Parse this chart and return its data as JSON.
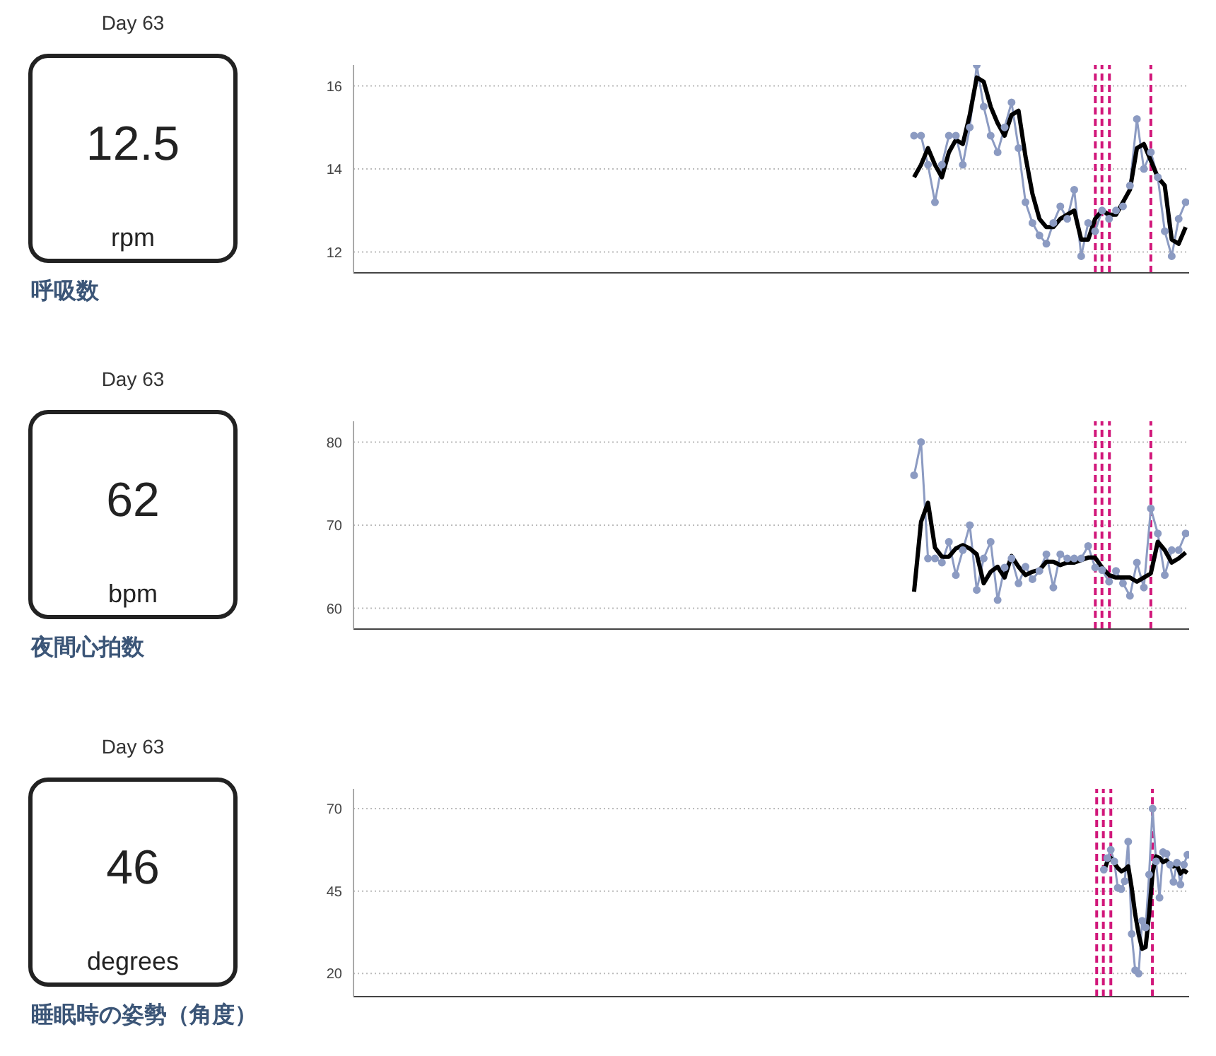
{
  "chart_data": [
    {
      "type": "other",
      "title": "Day 63",
      "annotations": [
        "12.5",
        "rpm",
        "呼吸数"
      ]
    },
    {
      "type": "line",
      "categories": [
        null,
        null,
        null,
        null,
        null,
        null,
        null,
        null,
        null,
        null,
        null,
        null,
        null,
        null,
        null,
        null,
        null,
        null,
        null,
        null,
        null,
        null,
        null,
        null,
        null,
        null,
        null,
        null,
        null,
        null,
        null,
        null,
        null,
        null,
        null,
        null,
        null,
        null,
        null,
        null,
        null,
        null,
        null,
        null,
        null,
        null,
        null,
        null,
        null,
        null,
        null,
        null,
        null,
        null,
        null,
        null,
        null,
        null,
        null,
        null,
        null,
        null,
        null,
        null,
        null,
        null,
        null,
        null,
        null,
        null,
        null,
        null,
        null,
        null,
        null,
        null,
        null,
        null,
        null,
        null,
        null,
        null,
        null,
        null,
        null,
        null,
        null,
        null,
        null,
        null,
        null,
        null,
        null,
        null,
        null,
        null,
        null,
        null,
        null,
        null,
        null,
        null,
        null,
        null,
        null,
        null,
        null,
        null,
        null,
        null,
        null,
        null,
        null,
        null,
        null,
        null,
        null,
        null,
        null,
        null
      ],
      "ylim": [
        11.5,
        16.5
      ],
      "yticks": [
        12,
        14,
        16
      ],
      "grid": "y",
      "series": [
        {
          "color": "#8c9bc2",
          "marker": "circle",
          "values": [
            null,
            null,
            null,
            null,
            null,
            null,
            null,
            null,
            null,
            null,
            null,
            null,
            null,
            null,
            null,
            null,
            null,
            null,
            null,
            null,
            null,
            null,
            null,
            null,
            null,
            null,
            null,
            null,
            null,
            null,
            null,
            null,
            null,
            null,
            null,
            null,
            null,
            null,
            null,
            null,
            null,
            null,
            null,
            null,
            null,
            null,
            null,
            null,
            null,
            null,
            null,
            null,
            null,
            null,
            null,
            null,
            null,
            null,
            null,
            null,
            null,
            null,
            null,
            null,
            null,
            null,
            null,
            null,
            null,
            null,
            null,
            null,
            null,
            null,
            null,
            null,
            null,
            null,
            null,
            null,
            14.8,
            14.8,
            14.1,
            13.2,
            14.1,
            14.8,
            14.8,
            14.1,
            15.0,
            16.5,
            15.5,
            14.8,
            14.4,
            15.0,
            15.6,
            14.5,
            13.2,
            12.7,
            12.4,
            12.2,
            12.7,
            13.1,
            12.8,
            13.5,
            11.9,
            12.7,
            12.5,
            13.0,
            12.8,
            13.0,
            13.1,
            13.6,
            15.2,
            14.0,
            14.4,
            13.8,
            12.5,
            11.9,
            12.8,
            13.2
          ]
        },
        {
          "color": "#000000",
          "marker": "none",
          "values": [
            null,
            null,
            null,
            null,
            null,
            null,
            null,
            null,
            null,
            null,
            null,
            null,
            null,
            null,
            null,
            null,
            null,
            null,
            null,
            null,
            null,
            null,
            null,
            null,
            null,
            null,
            null,
            null,
            null,
            null,
            null,
            null,
            null,
            null,
            null,
            null,
            null,
            null,
            null,
            null,
            null,
            null,
            null,
            null,
            null,
            null,
            null,
            null,
            null,
            null,
            null,
            null,
            null,
            null,
            null,
            null,
            null,
            null,
            null,
            null,
            null,
            null,
            null,
            null,
            null,
            null,
            null,
            null,
            null,
            null,
            null,
            null,
            null,
            null,
            null,
            null,
            null,
            null,
            null,
            null,
            13.8,
            14.1,
            14.5,
            14.1,
            13.8,
            14.4,
            14.7,
            14.6,
            15.3,
            16.2,
            16.1,
            15.5,
            15.1,
            14.8,
            15.3,
            15.4,
            14.3,
            13.4,
            12.8,
            12.6,
            12.6,
            12.8,
            12.9,
            13.0,
            12.3,
            12.3,
            12.8,
            13.0,
            12.9,
            12.9,
            13.2,
            13.5,
            14.5,
            14.6,
            14.2,
            13.8,
            13.6,
            12.3,
            12.2,
            12.6
          ]
        }
      ],
      "tick_labels": "y"
    },
    {
      "type": "other",
      "title": "Day 63",
      "annotations": [
        "62",
        "bpm",
        "夜間心拍数"
      ]
    },
    {
      "type": "line",
      "categories": [
        null,
        null,
        null,
        null,
        null,
        null,
        null,
        null,
        null,
        null,
        null,
        null,
        null,
        null,
        null,
        null,
        null,
        null,
        null,
        null,
        null,
        null,
        null,
        null,
        null,
        null,
        null,
        null,
        null,
        null,
        null,
        null,
        null,
        null,
        null,
        null,
        null,
        null,
        null,
        null,
        null,
        null,
        null,
        null,
        null,
        null,
        null,
        null,
        null,
        null,
        null,
        null,
        null,
        null,
        null,
        null,
        null,
        null,
        null,
        null,
        null,
        null,
        null,
        null,
        null,
        null,
        null,
        null,
        null,
        null,
        null,
        null,
        null,
        null,
        null,
        null,
        null,
        null,
        null,
        null,
        null,
        null,
        null,
        null,
        null,
        null,
        null,
        null,
        null,
        null,
        null,
        null,
        null,
        null,
        null,
        null,
        null,
        null,
        null,
        null,
        null,
        null,
        null,
        null,
        null,
        null,
        null,
        null,
        null,
        null,
        null,
        null,
        null,
        null,
        null,
        null,
        null,
        null,
        null,
        null
      ],
      "ylim": [
        57.5,
        82.5
      ],
      "yticks": [
        60,
        70,
        80
      ],
      "grid": "y",
      "series": [
        {
          "color": "#8c9bc2",
          "marker": "circle",
          "values": [
            null,
            null,
            null,
            null,
            null,
            null,
            null,
            null,
            null,
            null,
            null,
            null,
            null,
            null,
            null,
            null,
            null,
            null,
            null,
            null,
            null,
            null,
            null,
            null,
            null,
            null,
            null,
            null,
            null,
            null,
            null,
            null,
            null,
            null,
            null,
            null,
            null,
            null,
            null,
            null,
            null,
            null,
            null,
            null,
            null,
            null,
            null,
            null,
            null,
            null,
            null,
            null,
            null,
            null,
            null,
            null,
            null,
            null,
            null,
            null,
            null,
            null,
            null,
            null,
            null,
            null,
            null,
            null,
            null,
            null,
            null,
            null,
            null,
            null,
            null,
            null,
            null,
            null,
            null,
            null,
            76,
            80,
            66,
            66,
            65.5,
            68,
            64,
            67,
            70,
            62.2,
            66,
            68,
            61,
            64.9,
            66,
            63,
            65,
            63.5,
            64.5,
            66.5,
            62.5,
            66.5,
            66,
            66,
            66,
            67.5,
            64.9,
            64.6,
            63.2,
            64.5,
            63,
            61.5,
            65.5,
            62.5,
            72,
            69,
            64,
            67,
            67,
            69
          ]
        },
        {
          "color": "#000000",
          "marker": "none",
          "values": [
            null,
            null,
            null,
            null,
            null,
            null,
            null,
            null,
            null,
            null,
            null,
            null,
            null,
            null,
            null,
            null,
            null,
            null,
            null,
            null,
            null,
            null,
            null,
            null,
            null,
            null,
            null,
            null,
            null,
            null,
            null,
            null,
            null,
            null,
            null,
            null,
            null,
            null,
            null,
            null,
            null,
            null,
            null,
            null,
            null,
            null,
            null,
            null,
            null,
            null,
            null,
            null,
            null,
            null,
            null,
            null,
            null,
            null,
            null,
            null,
            null,
            null,
            null,
            null,
            null,
            null,
            null,
            null,
            null,
            null,
            null,
            null,
            null,
            null,
            null,
            null,
            null,
            null,
            null,
            null,
            62,
            70.4,
            72.7,
            67.3,
            66.2,
            66.2,
            67.2,
            67.6,
            67.2,
            66.5,
            63,
            64.4,
            65,
            63.7,
            66.3,
            65,
            64,
            64.4,
            64.6,
            65.6,
            65.6,
            65.2,
            65.5,
            65.5,
            65.8,
            66.1,
            66.1,
            64.9,
            64,
            63.7,
            63.7,
            63.7,
            63.2,
            63.7,
            64.2,
            68,
            67,
            65.5,
            66,
            66.7
          ]
        }
      ],
      "tick_labels": "y"
    },
    {
      "type": "other",
      "title": "Day 63",
      "annotations": [
        "46",
        "degrees",
        "睡眠時の姿勢（角度）"
      ]
    },
    {
      "type": "line",
      "categories": [
        null,
        null,
        null,
        null,
        null,
        null,
        null,
        null,
        null,
        null,
        null,
        null,
        null,
        null,
        null,
        null,
        null,
        null,
        null,
        null,
        null,
        null,
        null,
        null,
        null,
        null,
        null,
        null,
        null,
        null,
        null,
        null,
        null,
        null,
        null,
        null,
        null,
        null,
        null,
        null,
        null,
        null,
        null,
        null,
        null,
        null,
        null,
        null,
        null,
        null,
        null,
        null,
        null,
        null,
        null,
        null,
        null,
        null,
        null,
        null,
        null,
        null,
        null,
        null,
        null,
        null,
        null,
        null,
        null,
        null,
        null,
        null,
        null,
        null,
        null,
        null,
        null,
        null,
        null,
        null,
        null,
        null,
        null,
        null,
        null,
        null,
        null,
        null,
        null,
        null,
        null,
        null,
        null,
        null,
        null,
        null,
        null,
        null,
        null,
        null,
        null,
        null,
        null,
        null,
        null,
        null,
        null,
        null,
        null,
        null,
        null,
        null,
        null,
        null,
        null,
        null,
        null,
        null,
        null,
        null,
        null,
        null,
        null,
        null,
        null,
        null,
        null,
        null,
        null,
        null,
        null,
        null,
        null,
        null,
        null,
        null,
        null,
        null,
        null,
        null,
        null,
        null,
        null,
        null,
        null,
        null,
        null,
        null,
        null,
        null,
        null,
        null,
        null,
        null,
        null,
        null,
        null,
        null,
        null,
        null,
        null,
        null,
        null,
        null,
        null,
        null,
        null,
        null,
        null,
        null,
        null,
        null,
        null,
        null,
        null,
        null,
        null,
        null,
        null,
        null,
        null,
        null,
        null,
        null,
        null,
        null,
        null,
        null,
        null,
        null,
        null,
        null,
        null,
        null,
        null,
        null,
        null,
        null,
        null,
        null,
        null,
        null,
        null,
        null,
        null,
        null,
        null,
        null,
        null,
        null,
        null,
        null,
        null,
        null,
        null,
        null,
        null,
        null,
        null,
        null,
        null,
        null,
        null,
        null,
        null,
        null,
        null,
        null,
        null,
        null,
        null,
        null,
        null,
        null,
        null,
        null,
        null,
        null,
        null,
        null
      ],
      "ylim": [
        13,
        76
      ],
      "yticks": [
        20,
        45,
        70
      ],
      "grid": "y",
      "series": [
        {
          "color": "#8c9bc2",
          "marker": "circle",
          "values": [
            null,
            null,
            null,
            null,
            null,
            null,
            null,
            null,
            null,
            null,
            null,
            null,
            null,
            null,
            null,
            null,
            null,
            null,
            null,
            null,
            null,
            null,
            null,
            null,
            null,
            null,
            null,
            null,
            null,
            null,
            null,
            null,
            null,
            null,
            null,
            null,
            null,
            null,
            null,
            null,
            null,
            null,
            null,
            null,
            null,
            null,
            null,
            null,
            null,
            null,
            null,
            null,
            null,
            null,
            null,
            null,
            null,
            null,
            null,
            null,
            null,
            null,
            null,
            null,
            null,
            null,
            null,
            null,
            null,
            null,
            null,
            null,
            null,
            null,
            null,
            null,
            null,
            null,
            null,
            null,
            null,
            null,
            null,
            null,
            null,
            null,
            null,
            null,
            null,
            null,
            null,
            null,
            null,
            null,
            null,
            null,
            null,
            null,
            null,
            null,
            null,
            null,
            null,
            null,
            null,
            null,
            null,
            null,
            null,
            null,
            null,
            null,
            null,
            null,
            null,
            null,
            null,
            null,
            null,
            null,
            null,
            null,
            null,
            null,
            null,
            null,
            null,
            null,
            null,
            null,
            null,
            null,
            null,
            null,
            null,
            null,
            null,
            null,
            null,
            null,
            null,
            null,
            null,
            null,
            null,
            null,
            null,
            null,
            null,
            null,
            null,
            null,
            null,
            null,
            null,
            null,
            null,
            null,
            null,
            null,
            null,
            null,
            null,
            null,
            null,
            null,
            null,
            null,
            null,
            null,
            null,
            null,
            null,
            null,
            null,
            null,
            null,
            null,
            null,
            null,
            null,
            null,
            null,
            null,
            null,
            null,
            null,
            null,
            null,
            null,
            null,
            null,
            null,
            null,
            null,
            null,
            null,
            null,
            null,
            null,
            null,
            null,
            null,
            null,
            null,
            null,
            null,
            null,
            null,
            null,
            null,
            null,
            null,
            null,
            null,
            51.5,
            55,
            57.5,
            54,
            46,
            45.6,
            48,
            60,
            32,
            21,
            20,
            36,
            34,
            50,
            70,
            54,
            43,
            56.8,
            56.3,
            53,
            47.8,
            53.6,
            47,
            53,
            56
          ]
        },
        {
          "color": "#000000",
          "marker": "none",
          "values": [
            null,
            null,
            null,
            null,
            null,
            null,
            null,
            null,
            null,
            null,
            null,
            null,
            null,
            null,
            null,
            null,
            null,
            null,
            null,
            null,
            null,
            null,
            null,
            null,
            null,
            null,
            null,
            null,
            null,
            null,
            null,
            null,
            null,
            null,
            null,
            null,
            null,
            null,
            null,
            null,
            null,
            null,
            null,
            null,
            null,
            null,
            null,
            null,
            null,
            null,
            null,
            null,
            null,
            null,
            null,
            null,
            null,
            null,
            null,
            null,
            null,
            null,
            null,
            null,
            null,
            null,
            null,
            null,
            null,
            null,
            null,
            null,
            null,
            null,
            null,
            null,
            null,
            null,
            null,
            null,
            null,
            null,
            null,
            null,
            null,
            null,
            null,
            null,
            null,
            null,
            null,
            null,
            null,
            null,
            null,
            null,
            null,
            null,
            null,
            null,
            null,
            null,
            null,
            null,
            null,
            null,
            null,
            null,
            null,
            null,
            null,
            null,
            null,
            null,
            null,
            null,
            null,
            null,
            null,
            null,
            null,
            null,
            null,
            null,
            null,
            null,
            null,
            null,
            null,
            null,
            null,
            null,
            null,
            null,
            null,
            null,
            null,
            null,
            null,
            null,
            null,
            null,
            null,
            null,
            null,
            null,
            null,
            null,
            null,
            null,
            null,
            null,
            null,
            null,
            null,
            null,
            null,
            null,
            null,
            null,
            null,
            null,
            null,
            null,
            null,
            null,
            null,
            null,
            null,
            null,
            null,
            null,
            null,
            null,
            null,
            null,
            null,
            null,
            null,
            null,
            null,
            null,
            null,
            null,
            null,
            null,
            null,
            null,
            null,
            null,
            null,
            null,
            null,
            null,
            null,
            null,
            null,
            null,
            null,
            null,
            null,
            null,
            null,
            null,
            null,
            null,
            null,
            null,
            null,
            null,
            null,
            null,
            null,
            null,
            null,
            50.8,
            54,
            55,
            53.5,
            52,
            51,
            51.5,
            52.5,
            46,
            38,
            32,
            27.5,
            28,
            38,
            50.5,
            55.5,
            55,
            53.8,
            54.3,
            53,
            52.5,
            52.8,
            50.3,
            51.3,
            50.5
          ]
        }
      ],
      "tick_labels": "y"
    }
  ]
}
